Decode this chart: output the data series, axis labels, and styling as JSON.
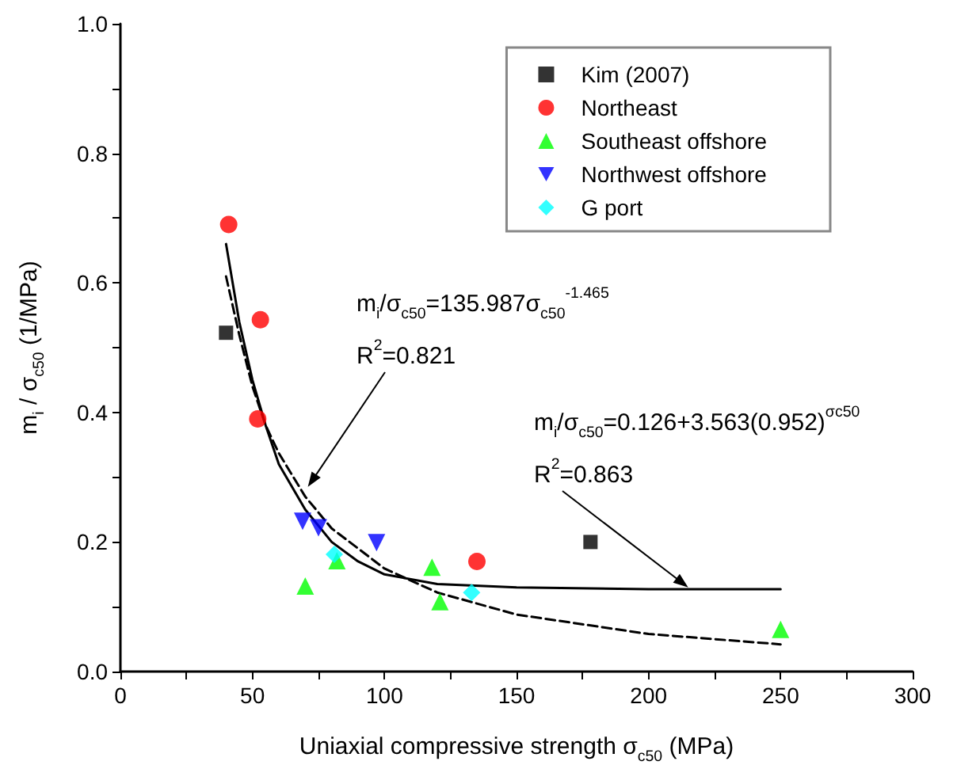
{
  "chart_data": {
    "type": "scatter",
    "xlabel": "Uniaxial compressive strength σ$_{c50}$ (MPa)",
    "ylabel": "m$_{i}$ / σ$_{c50}$ (1/MPa)",
    "xlim": [
      0,
      300
    ],
    "xticks": [
      0,
      {
        "value": 25,
        "label": null
      },
      50,
      {
        "value": 75,
        "label": null
      },
      100,
      {
        "value": 125,
        "label": null
      },
      150,
      {
        "value": 175,
        "label": null
      },
      200,
      {
        "value": 225,
        "label": null
      },
      250,
      {
        "value": 275,
        "label": null
      },
      300
    ],
    "ylim": [
      0,
      1.0
    ],
    "yticks": [
      {
        "value": 0,
        "label": "0.0"
      },
      {
        "value": 0.1,
        "label": null
      },
      0.2,
      {
        "value": 0.3,
        "label": null
      },
      0.4,
      {
        "value": 0.5,
        "label": null
      },
      0.6,
      {
        "value": 0.7,
        "label": null
      },
      0.8,
      {
        "value": 0.9,
        "label": null
      },
      {
        "value": 1.0,
        "label": "1.0"
      }
    ],
    "grid": false,
    "legend": "top right",
    "series": [
      {
        "name": "Kim (2007)",
        "color": "#000000",
        "marker": "square",
        "x": [
          40,
          178
        ],
        "values": [
          0.523,
          0.2
        ]
      },
      {
        "name": "Northeast",
        "color": "#ff0000",
        "marker": "circle",
        "x": [
          41,
          53,
          52,
          135
        ],
        "values": [
          0.69,
          0.543,
          0.39,
          0.17
        ]
      },
      {
        "name": "Southeast offshore",
        "color": "#00ff00",
        "marker": "triangle",
        "x": [
          70,
          82,
          118,
          121,
          250
        ],
        "values": [
          0.132,
          0.171,
          0.161,
          0.108,
          0.065
        ]
      },
      {
        "name": "Northwest offshore",
        "color": "#0000ff",
        "marker": "triangle-down",
        "x": [
          69,
          75,
          97
        ],
        "values": [
          0.232,
          0.222,
          0.199
        ]
      },
      {
        "name": "G port",
        "color": "#00ffff",
        "marker": "diamond",
        "x": [
          81,
          133
        ],
        "values": [
          0.181,
          0.122
        ]
      },
      {
        "type": "line",
        "color": "#000000",
        "marker": "none",
        "line_style": "solid",
        "x": [
          40,
          45,
          50,
          55,
          60,
          70,
          80,
          90,
          100,
          120,
          150,
          200,
          250
        ],
        "values": [
          0.66,
          0.54,
          0.45,
          0.38,
          0.32,
          0.25,
          0.2,
          0.17,
          0.15,
          0.135,
          0.13,
          0.127,
          0.127
        ]
      },
      {
        "type": "line",
        "color": "#000000",
        "marker": "none",
        "line_style": "dashed",
        "x": [
          40,
          45,
          50,
          55,
          60,
          70,
          80,
          90,
          100,
          120,
          150,
          200,
          250
        ],
        "values": [
          0.61,
          0.52,
          0.44,
          0.38,
          0.337,
          0.27,
          0.221,
          0.19,
          0.159,
          0.122,
          0.088,
          0.058,
          0.042
        ]
      }
    ],
    "annotations": [
      "m$_{i}$/σ$_{c50}$=135.987σ$_{c50}$$^{-1.465}$",
      {
        "text": "R$^{2}$=0.821",
        "x": 71,
        "y": 0.285
      },
      "m$_{i}$/σ$_{c50}$=0.126+3.563(0.952)$^{σc50}$",
      {
        "text": "R$^{2}$=0.863",
        "x": 215,
        "y": 0.13
      }
    ]
  }
}
